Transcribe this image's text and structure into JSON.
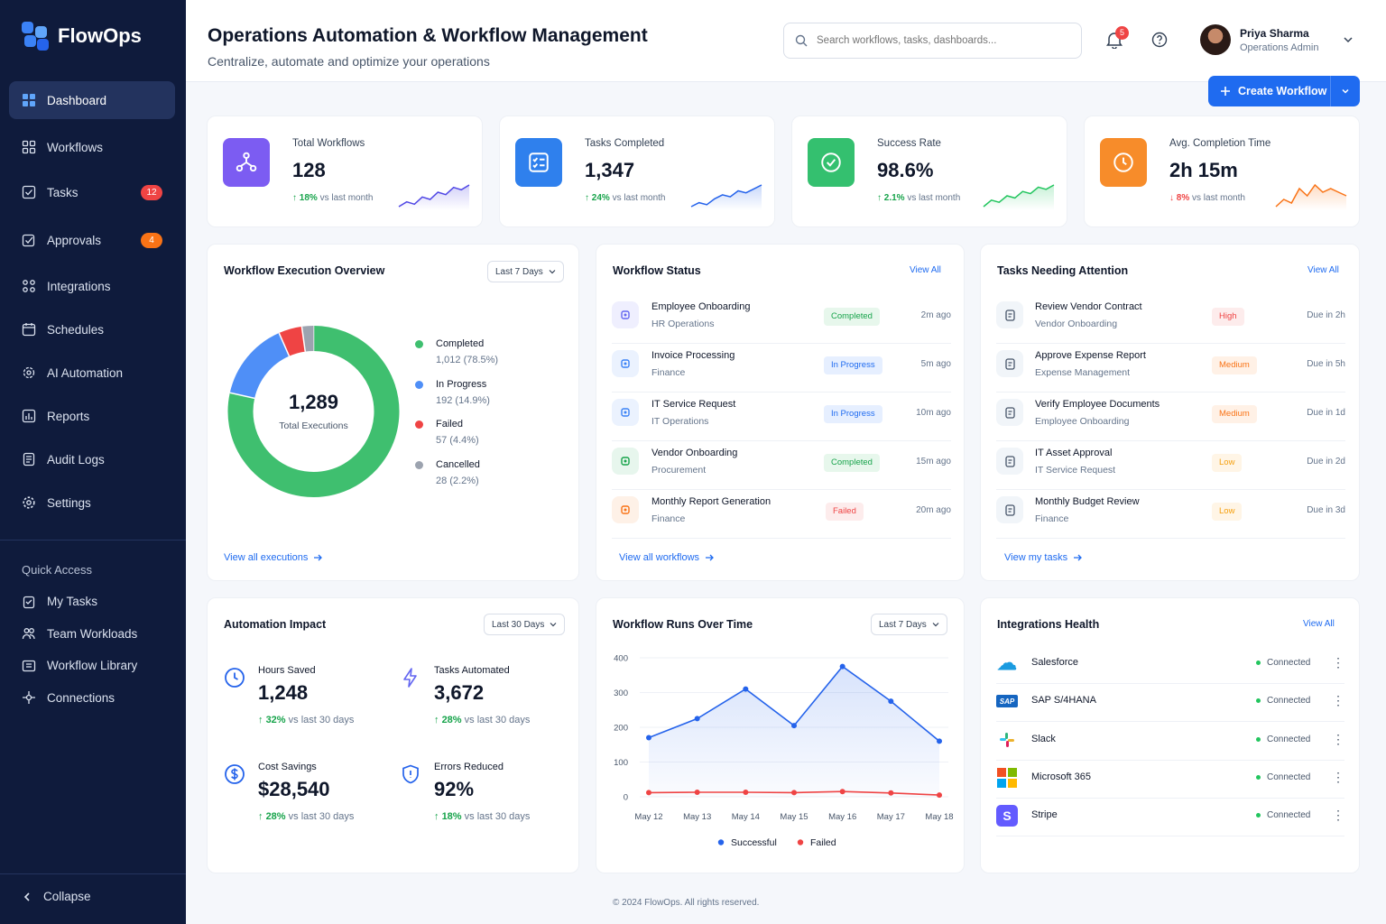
{
  "app": {
    "name": "FlowOps"
  },
  "sidebar": {
    "items": [
      {
        "label": "Dashboard",
        "icon": "dashboard-icon"
      },
      {
        "label": "Workflows",
        "icon": "grid-icon"
      },
      {
        "label": "Tasks",
        "icon": "checkbox-icon",
        "badge": "12"
      },
      {
        "label": "Approvals",
        "icon": "approval-icon",
        "badge": "4"
      },
      {
        "label": "Integrations",
        "icon": "integrations-icon"
      },
      {
        "label": "Schedules",
        "icon": "calendar-icon"
      },
      {
        "label": "AI Automation",
        "icon": "ai-gear-icon"
      },
      {
        "label": "Reports",
        "icon": "reports-icon"
      },
      {
        "label": "Audit Logs",
        "icon": "audit-log-icon"
      },
      {
        "label": "Settings",
        "icon": "settings-icon"
      }
    ],
    "quick_access_title": "Quick Access",
    "quick_access": [
      {
        "label": "My Tasks",
        "icon": "clipboard-icon"
      },
      {
        "label": "Team Workloads",
        "icon": "team-icon"
      },
      {
        "label": "Workflow Library",
        "icon": "library-icon"
      },
      {
        "label": "Connections",
        "icon": "connections-icon"
      }
    ],
    "collapse_label": "Collapse"
  },
  "header": {
    "title": "Operations Automation & Workflow Management",
    "subtitle": "Centralize, automate and optimize your operations",
    "search_placeholder": "Search workflows, tasks, dashboards...",
    "notifications_count": "5",
    "user_name": "Priya Sharma",
    "user_role": "Operations Admin",
    "create_button": "Create Workflow"
  },
  "kpis": [
    {
      "label": "Total Workflows",
      "value": "128",
      "delta": "18%",
      "delta_text": "vs last month",
      "direction": "up",
      "color": "#7c5cf2",
      "icon": "workflow-icon",
      "trend": [
        4,
        6,
        5,
        8,
        7,
        10,
        9,
        12,
        11,
        13
      ]
    },
    {
      "label": "Tasks Completed",
      "value": "1,347",
      "delta": "24%",
      "delta_text": "vs last month",
      "direction": "up",
      "color": "#2f80ed",
      "icon": "checklist-icon",
      "trend": [
        3,
        5,
        4,
        7,
        9,
        8,
        11,
        10,
        12,
        14
      ]
    },
    {
      "label": "Success Rate",
      "value": "98.6%",
      "delta": "2.1%",
      "delta_text": "vs last month",
      "direction": "up",
      "color": "#34c06f",
      "icon": "check-circle-icon",
      "trend": [
        3,
        6,
        5,
        8,
        7,
        10,
        9,
        12,
        11,
        13
      ]
    },
    {
      "label": "Avg. Completion Time",
      "value": "2h 15m",
      "delta": "8%",
      "delta_text": "vs last month",
      "direction": "down",
      "color": "#f78c2a",
      "icon": "clock-icon",
      "trend": [
        4,
        6,
        5,
        9,
        7,
        10,
        8,
        9,
        8,
        7
      ]
    }
  ],
  "execution": {
    "title": "Workflow Execution Overview",
    "range": "Last 7 Days",
    "total": "1,289",
    "total_label": "Total Executions",
    "segments": [
      {
        "name": "Completed",
        "value": "1,012 (78.5%)",
        "pct": 78.5,
        "color": "#3fbf6f"
      },
      {
        "name": "In Progress",
        "value": "192 (14.9%)",
        "pct": 14.9,
        "color": "#4f8ff7"
      },
      {
        "name": "Failed",
        "value": "57 (4.4%)",
        "pct": 4.4,
        "color": "#ef4444"
      },
      {
        "name": "Cancelled",
        "value": "28 (2.2%)",
        "pct": 2.2,
        "color": "#9ca3af"
      }
    ],
    "link": "View all executions"
  },
  "workflow_status": {
    "title": "Workflow Status",
    "view_all": "View All",
    "rows": [
      {
        "name": "Employee Onboarding",
        "dept": "HR Operations",
        "status": "Completed",
        "kind": "completed",
        "time": "2m ago",
        "icon": "onboarding-icon",
        "color": "#6366f1"
      },
      {
        "name": "Invoice Processing",
        "dept": "Finance",
        "status": "In Progress",
        "kind": "progress",
        "time": "5m ago",
        "icon": "invoice-icon",
        "color": "#3b82f6"
      },
      {
        "name": "IT Service Request",
        "dept": "IT Operations",
        "status": "In Progress",
        "kind": "progress",
        "time": "10m ago",
        "icon": "service-icon",
        "color": "#3b82f6"
      },
      {
        "name": "Vendor Onboarding",
        "dept": "Procurement",
        "status": "Completed",
        "kind": "completed",
        "time": "15m ago",
        "icon": "vendor-icon",
        "color": "#16a34a"
      },
      {
        "name": "Monthly Report Generation",
        "dept": "Finance",
        "status": "Failed",
        "kind": "failed",
        "time": "20m ago",
        "icon": "report-icon",
        "color": "#f97316"
      }
    ],
    "link": "View all workflows"
  },
  "tasks": {
    "title": "Tasks Needing Attention",
    "view_all": "View All",
    "rows": [
      {
        "name": "Review Vendor Contract",
        "context": "Vendor Onboarding",
        "priority": "High",
        "kind": "high",
        "due": "Due in 2h",
        "icon": "contract-icon"
      },
      {
        "name": "Approve Expense Report",
        "context": "Expense Management",
        "priority": "Medium",
        "kind": "medium",
        "due": "Due in 5h",
        "icon": "expense-icon"
      },
      {
        "name": "Verify Employee Documents",
        "context": "Employee Onboarding",
        "priority": "Medium",
        "kind": "medium",
        "due": "Due in 1d",
        "icon": "person-icon"
      },
      {
        "name": "IT Asset Approval",
        "context": "IT Service Request",
        "priority": "Low",
        "kind": "low",
        "due": "Due in 2d",
        "icon": "asset-icon"
      },
      {
        "name": "Monthly Budget Review",
        "context": "Finance",
        "priority": "Low",
        "kind": "low",
        "due": "Due in 3d",
        "icon": "budget-icon"
      }
    ],
    "link": "View my tasks"
  },
  "impact": {
    "title": "Automation Impact",
    "range": "Last 30 Days",
    "items": [
      {
        "label": "Hours Saved",
        "value": "1,248",
        "delta": "32%",
        "delta_text": "vs last 30 days",
        "icon": "clock-icon"
      },
      {
        "label": "Tasks Automated",
        "value": "3,672",
        "delta": "28%",
        "delta_text": "vs last 30 days",
        "icon": "lightning-icon"
      },
      {
        "label": "Cost Savings",
        "value": "$28,540",
        "delta": "28%",
        "delta_text": "vs last 30 days",
        "icon": "dollar-icon"
      },
      {
        "label": "Errors Reduced",
        "value": "92%",
        "delta": "18%",
        "delta_text": "vs last 30 days",
        "icon": "shield-icon"
      }
    ]
  },
  "runs": {
    "title": "Workflow Runs Over Time",
    "range": "Last 7 Days"
  },
  "chart_data": {
    "type": "line",
    "title": "Workflow Runs Over Time",
    "x": [
      "May 12",
      "May 13",
      "May 14",
      "May 15",
      "May 16",
      "May 17",
      "May 18"
    ],
    "series": [
      {
        "name": "Successful",
        "color": "#2563eb",
        "values": [
          170,
          225,
          310,
          205,
          375,
          275,
          160
        ]
      },
      {
        "name": "Failed",
        "color": "#ef4444",
        "values": [
          12,
          13,
          13,
          12,
          15,
          11,
          5
        ]
      }
    ],
    "yticks": [
      0,
      100,
      200,
      300,
      400
    ],
    "ylim": [
      0,
      400
    ],
    "legend": "bottom"
  },
  "integrations": {
    "title": "Integrations Health",
    "view_all": "View All",
    "rows": [
      {
        "name": "Salesforce",
        "status": "Connected",
        "icon": "salesforce-icon",
        "color": "#1a9be0",
        "mark": "☁"
      },
      {
        "name": "SAP S/4HANA",
        "status": "Connected",
        "icon": "sap-icon",
        "color": "#1565c0",
        "mark": "SAP"
      },
      {
        "name": "Slack",
        "status": "Connected",
        "icon": "slack-icon",
        "color": "#ffffff",
        "mark": ""
      },
      {
        "name": "Microsoft 365",
        "status": "Connected",
        "icon": "microsoft-icon",
        "color": "#ffffff",
        "mark": ""
      },
      {
        "name": "Stripe",
        "status": "Connected",
        "icon": "stripe-icon",
        "color": "#635bff",
        "mark": "S"
      }
    ]
  },
  "footer": "© 2024 FlowOps. All rights reserved."
}
